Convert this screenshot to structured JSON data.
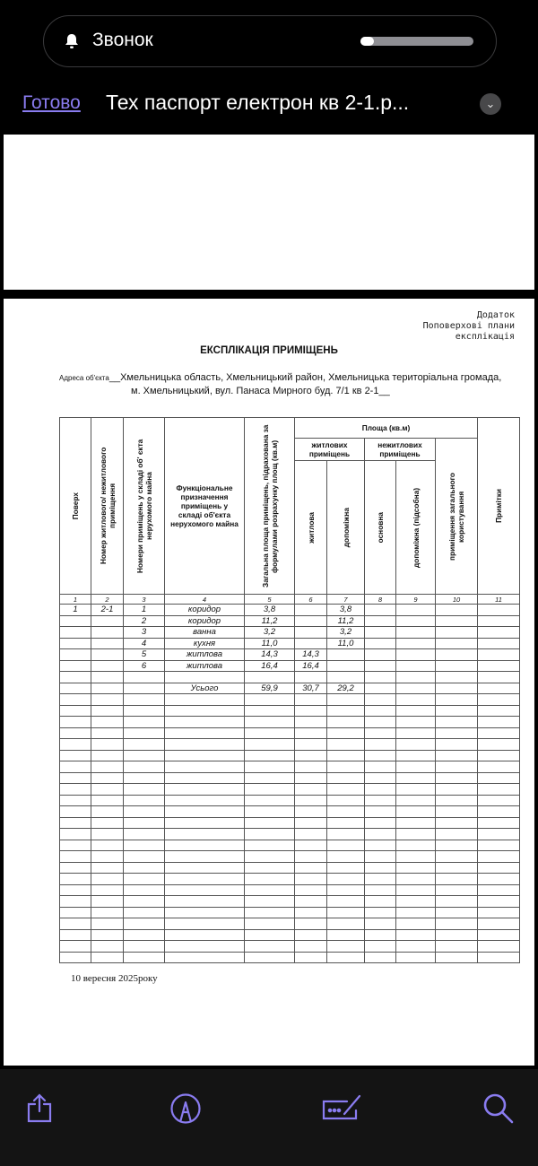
{
  "notification": {
    "icon": "bell-icon",
    "label": "Звонок",
    "volume_level": 0.12
  },
  "nav": {
    "done_label": "Готово",
    "title": "Тех паспорт електрон кв 2-1.p...",
    "menu_icon": "chevron-down-icon",
    "accent": "#8a7cf0"
  },
  "document": {
    "corner_note": [
      "Додаток",
      "Поповерхові плани",
      "експлікація"
    ],
    "title": "ЕКСПЛІКАЦІЯ ПРИМІЩЕНЬ",
    "address_label": "Адреса об'єкта",
    "address_line1": "__Хмельницька область, Хмельницький район, Хмельницька територіальна громада,",
    "address_line2": "м. Хмельницький, вул. Панаса Мирного буд. 7/1 кв  2-1__",
    "headers": {
      "floor": "Поверх",
      "unit_number": "Номер житлового/ нежитлового приміщення",
      "room_numbers": "Номери приміщень у складі об' єкта нерухомого майна",
      "function": "Функціональне призначення приміщень у складі об'єкта нерухомого майна",
      "total_area": "Загальна площа приміщень, підрахована за формулами розрахунку площ (кв.м)",
      "area_group": "Площа  (кв.м)",
      "residential": "житлових приміщень",
      "nonresidential": "нежитлових приміщень",
      "living": "житлова",
      "auxiliary": "допоміжна",
      "main": "основна",
      "auxiliary_support": "допоміжна (підсобна)",
      "common_use": "приміщення загального користування",
      "notes": "Примітки"
    },
    "column_numbers": [
      "1",
      "2",
      "3",
      "4",
      "5",
      "6",
      "7",
      "8",
      "9",
      "10",
      "11"
    ],
    "rows": [
      [
        "1",
        "2-1",
        "1",
        "коридор",
        "3,8",
        "",
        "3,8",
        "",
        "",
        "",
        ""
      ],
      [
        "",
        "",
        "2",
        "коридор",
        "11,2",
        "",
        "11,2",
        "",
        "",
        "",
        ""
      ],
      [
        "",
        "",
        "3",
        "ванна",
        "3,2",
        "",
        "3,2",
        "",
        "",
        "",
        ""
      ],
      [
        "",
        "",
        "4",
        "кухня",
        "11,0",
        "",
        "11,0",
        "",
        "",
        "",
        ""
      ],
      [
        "",
        "",
        "5",
        "житлова",
        "14,3",
        "14,3",
        "",
        "",
        "",
        "",
        ""
      ],
      [
        "",
        "",
        "6",
        "житлова",
        "16,4",
        "16,4",
        "",
        "",
        "",
        "",
        ""
      ],
      [
        "",
        "",
        "",
        "",
        "",
        "",
        "",
        "",
        "",
        "",
        ""
      ],
      [
        "",
        "",
        "",
        "Усього",
        "59,9",
        "30,7",
        "29,2",
        "",
        "",
        "",
        ""
      ]
    ],
    "date": "10 вересня 2025року"
  },
  "toolbar": [
    {
      "icon": "share-icon"
    },
    {
      "icon": "markup-icon"
    },
    {
      "icon": "form-fill-icon"
    },
    {
      "icon": "search-icon"
    }
  ]
}
